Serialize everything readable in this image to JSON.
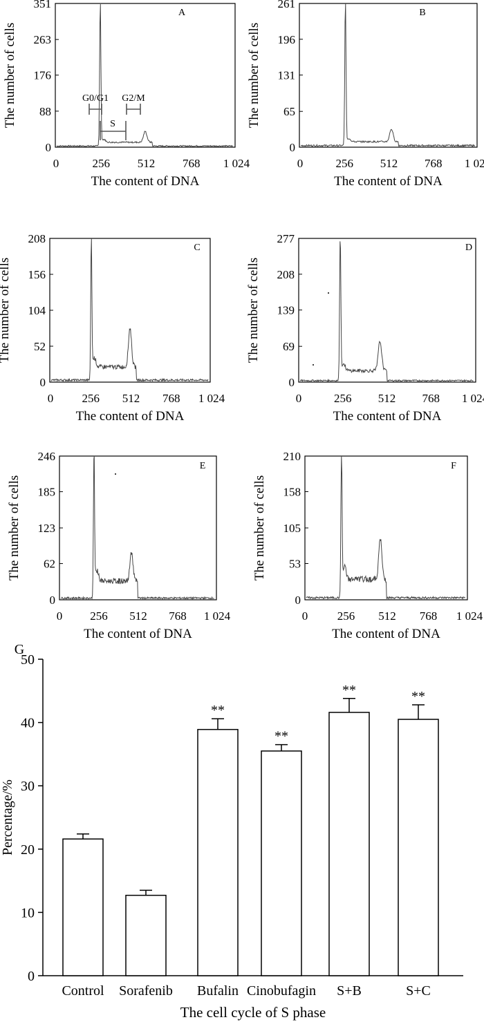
{
  "chart_data": [
    {
      "type": "histogram",
      "panel": "A",
      "xlabel": "The content of DNA",
      "ylabel": "The number of cells",
      "xticks": [
        0,
        256,
        512,
        768,
        "1 024"
      ],
      "yticks": [
        0,
        88,
        176,
        263,
        351
      ],
      "xlim": [
        0,
        1024
      ],
      "ylim": [
        0,
        351
      ],
      "peaks": {
        "g1_position": 256,
        "g1_height": 351,
        "g2_position": 512,
        "g2_height": 35,
        "s_level": 12
      },
      "annotations": {
        "g0g1": "G0/G1",
        "s": "S",
        "g2m": "G2/M"
      }
    },
    {
      "type": "histogram",
      "panel": "B",
      "xlabel": "The content of DNA",
      "ylabel": "The number of cells",
      "xticks": [
        0,
        256,
        512,
        768,
        "1 024"
      ],
      "yticks": [
        0,
        65,
        131,
        196,
        261
      ],
      "xlim": [
        0,
        1024
      ],
      "ylim": [
        0,
        261
      ],
      "peaks": {
        "g1_position": 265,
        "g1_height": 261,
        "g2_position": 530,
        "g2_height": 30,
        "s_level": 10
      }
    },
    {
      "type": "histogram",
      "panel": "C",
      "xlabel": "The content of DNA",
      "ylabel": "The number of cells",
      "xticks": [
        0,
        256,
        512,
        768,
        "1 024"
      ],
      "yticks": [
        0,
        52,
        104,
        156,
        208
      ],
      "xlim": [
        0,
        1024
      ],
      "ylim": [
        0,
        208
      ],
      "peaks": {
        "g1_position": 265,
        "g1_height": 208,
        "g2_position": 512,
        "g2_height": 72,
        "s_level": 22
      }
    },
    {
      "type": "histogram",
      "panel": "D",
      "xlabel": "The content of DNA",
      "ylabel": "The number of cells",
      "xticks": [
        0,
        256,
        512,
        768,
        "1 024"
      ],
      "yticks": [
        0,
        69,
        139,
        208,
        277
      ],
      "xlim": [
        0,
        1024
      ],
      "ylim": [
        0,
        277
      ],
      "peaks": {
        "g1_position": 240,
        "g1_height": 277,
        "g2_position": 470,
        "g2_height": 72,
        "s_level": 22
      }
    },
    {
      "type": "histogram",
      "panel": "E",
      "xlabel": "The content of DNA",
      "ylabel": "The number of cells",
      "xticks": [
        0,
        256,
        512,
        768,
        "1 024"
      ],
      "yticks": [
        0,
        62,
        123,
        185,
        246
      ],
      "xlim": [
        0,
        1024
      ],
      "ylim": [
        0,
        246
      ],
      "peaks": {
        "g1_position": 225,
        "g1_height": 246,
        "g2_position": 470,
        "g2_height": 72,
        "s_level": 32
      }
    },
    {
      "type": "histogram",
      "panel": "F",
      "xlabel": "The content of DNA",
      "ylabel": "The number of cells",
      "xticks": [
        0,
        256,
        512,
        768,
        "1 024"
      ],
      "yticks": [
        0,
        53,
        105,
        158,
        210
      ],
      "xlim": [
        0,
        1024
      ],
      "ylim": [
        0,
        210
      ],
      "peaks": {
        "g1_position": 230,
        "g1_height": 210,
        "g2_position": 475,
        "g2_height": 80,
        "s_level": 30
      }
    },
    {
      "type": "bar",
      "panel": "G",
      "xlabel": "The cell cycle of S phase",
      "ylabel": "Percentage/%",
      "categories": [
        "Control",
        "Sorafenib",
        "Bufalin",
        "Cinobufagin",
        "S+B",
        "S+C"
      ],
      "values": [
        21.6,
        12.7,
        38.9,
        35.5,
        41.6,
        40.5
      ],
      "errors": [
        0.8,
        0.8,
        1.7,
        1.0,
        2.2,
        2.3
      ],
      "significance": [
        "",
        "",
        "**",
        "**",
        "**",
        "**"
      ],
      "ylim": [
        0,
        50
      ],
      "yticks": [
        0,
        10,
        20,
        30,
        40,
        50
      ]
    }
  ]
}
